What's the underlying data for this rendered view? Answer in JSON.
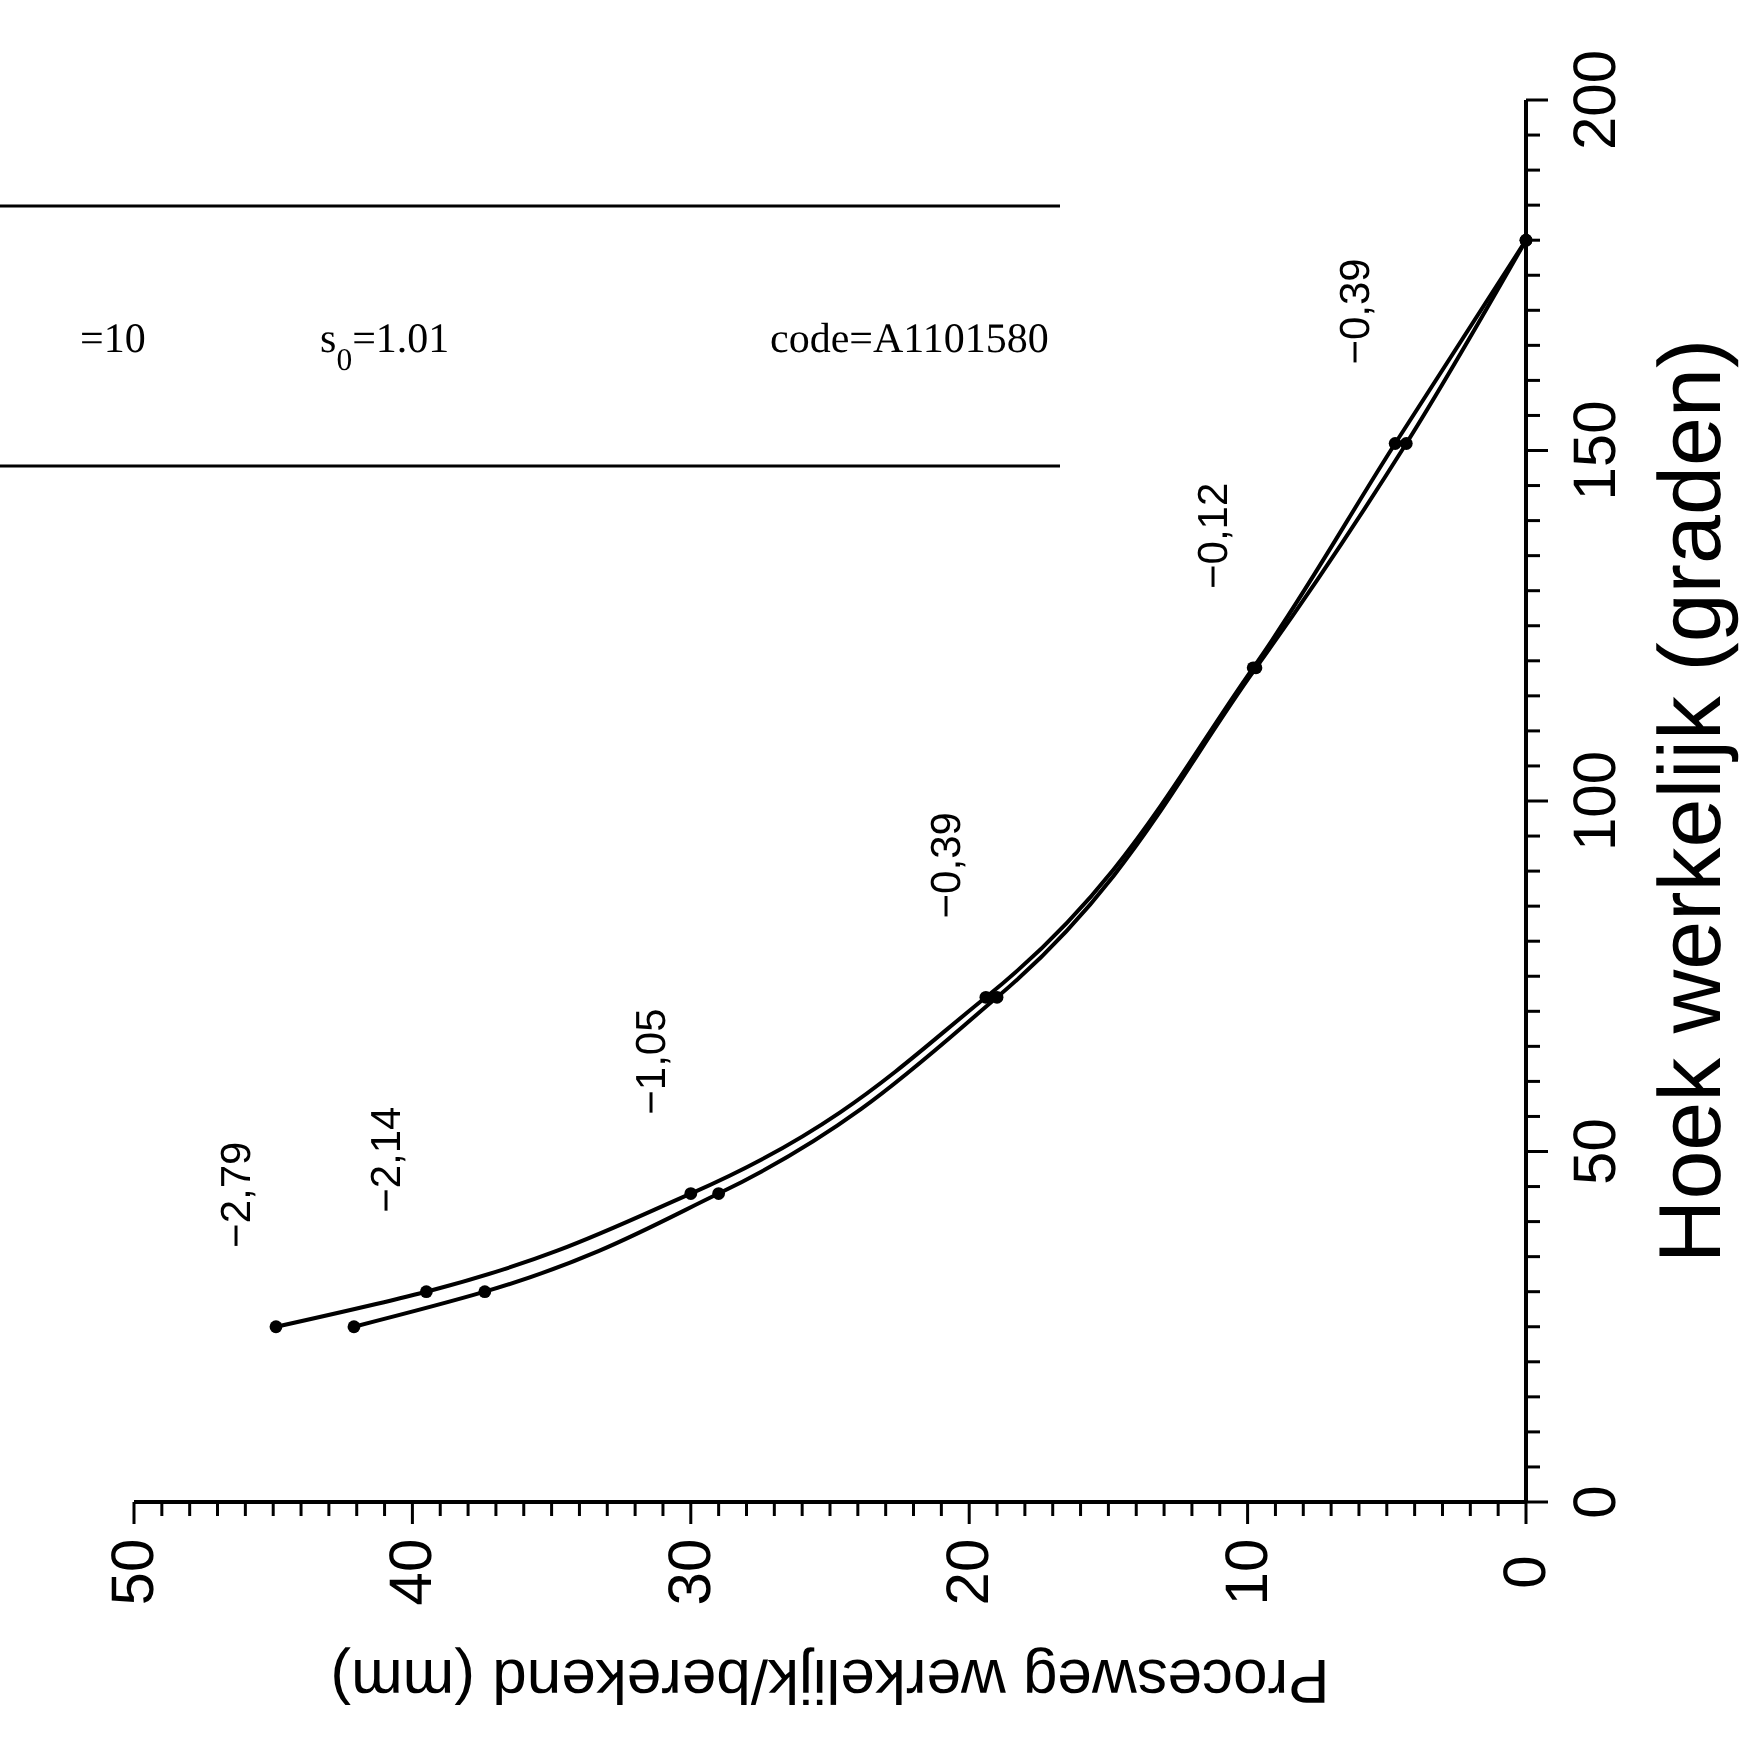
{
  "chart_data": {
    "type": "line",
    "series": [
      {
        "color": "#000000",
        "x": [
          44.9,
          39.5,
          30.0,
          19.4,
          9.8,
          4.7,
          0
        ],
        "values": [
          25,
          30,
          44,
          72,
          119,
          151,
          180
        ]
      },
      {
        "color": "#000000",
        "x": [
          42.1,
          37.4,
          29.0,
          19.0,
          9.7,
          4.3,
          0
        ],
        "values": [
          25,
          30,
          44,
          72,
          119,
          151,
          180
        ]
      }
    ],
    "xlabel": "Procesweg werkelijk/berekend (mm)",
    "ylabel": "Hoek werkelijk (graden)",
    "ylim": [
      0,
      200
    ],
    "yticks": [
      0,
      {
        "value": 5,
        "label": null
      },
      {
        "value": 10,
        "label": null
      },
      {
        "value": 15,
        "label": null
      },
      {
        "value": 20,
        "label": null
      },
      {
        "value": 25,
        "label": null
      },
      {
        "value": 30,
        "label": null
      },
      {
        "value": 35,
        "label": null
      },
      {
        "value": 40,
        "label": null
      },
      {
        "value": 45,
        "label": null
      },
      50,
      {
        "value": 55,
        "label": null
      },
      {
        "value": 60,
        "label": null
      },
      {
        "value": 65,
        "label": null
      },
      {
        "value": 70,
        "label": null
      },
      {
        "value": 75,
        "label": null
      },
      {
        "value": 80,
        "label": null
      },
      {
        "value": 85,
        "label": null
      },
      {
        "value": 90,
        "label": null
      },
      {
        "value": 95,
        "label": null
      },
      100,
      {
        "value": 105,
        "label": null
      },
      {
        "value": 110,
        "label": null
      },
      {
        "value": 115,
        "label": null
      },
      {
        "value": 120,
        "label": null
      },
      {
        "value": 125,
        "label": null
      },
      {
        "value": 130,
        "label": null
      },
      {
        "value": 135,
        "label": null
      },
      {
        "value": 140,
        "label": null
      },
      {
        "value": 145,
        "label": null
      },
      150,
      {
        "value": 155,
        "label": null
      },
      {
        "value": 160,
        "label": null
      },
      {
        "value": 165,
        "label": null
      },
      {
        "value": 170,
        "label": null
      },
      {
        "value": 175,
        "label": null
      },
      {
        "value": 180,
        "label": null
      },
      {
        "value": 185,
        "label": null
      },
      {
        "value": 190,
        "label": null
      },
      {
        "value": 195,
        "label": null
      },
      200
    ],
    "xlim": [
      50,
      0
    ],
    "xticks": [
      0,
      {
        "value": 1,
        "label": null
      },
      {
        "value": 2,
        "label": null
      },
      {
        "value": 3,
        "label": null
      },
      {
        "value": 4,
        "label": null
      },
      {
        "value": 5,
        "label": null
      },
      {
        "value": 6,
        "label": null
      },
      {
        "value": 7,
        "label": null
      },
      {
        "value": 8,
        "label": null
      },
      {
        "value": 9,
        "label": null
      },
      10,
      {
        "value": 11,
        "label": null
      },
      {
        "value": 12,
        "label": null
      },
      {
        "value": 13,
        "label": null
      },
      {
        "value": 14,
        "label": null
      },
      {
        "value": 15,
        "label": null
      },
      {
        "value": 16,
        "label": null
      },
      {
        "value": 17,
        "label": null
      },
      {
        "value": 18,
        "label": null
      },
      {
        "value": 19,
        "label": null
      },
      20,
      {
        "value": 21,
        "label": null
      },
      {
        "value": 22,
        "label": null
      },
      {
        "value": 23,
        "label": null
      },
      {
        "value": 24,
        "label": null
      },
      {
        "value": 25,
        "label": null
      },
      {
        "value": 26,
        "label": null
      },
      {
        "value": 27,
        "label": null
      },
      {
        "value": 28,
        "label": null
      },
      {
        "value": 29,
        "label": null
      },
      30,
      {
        "value": 31,
        "label": null
      },
      {
        "value": 32,
        "label": null
      },
      {
        "value": 33,
        "label": null
      },
      {
        "value": 34,
        "label": null
      },
      {
        "value": 35,
        "label": null
      },
      {
        "value": 36,
        "label": null
      },
      {
        "value": 37,
        "label": null
      },
      {
        "value": 38,
        "label": null
      },
      {
        "value": 39,
        "label": null
      },
      40,
      {
        "value": 41,
        "label": null
      },
      {
        "value": 42,
        "label": null
      },
      {
        "value": 43,
        "label": null
      },
      {
        "value": 44,
        "label": null
      },
      {
        "value": 45,
        "label": null
      },
      {
        "value": 46,
        "label": null
      },
      {
        "value": 47,
        "label": null
      },
      {
        "value": 48,
        "label": null
      },
      {
        "value": 49,
        "label": null
      },
      50
    ],
    "marker": "circle",
    "line_style": "solid",
    "annotations": [
      "=10",
      "s$_{0}$=1.01",
      "code=A1101580",
      "−2,79",
      "−2,14",
      "−1,05",
      "−0,39",
      "−0,12",
      "−0,39"
    ]
  }
}
